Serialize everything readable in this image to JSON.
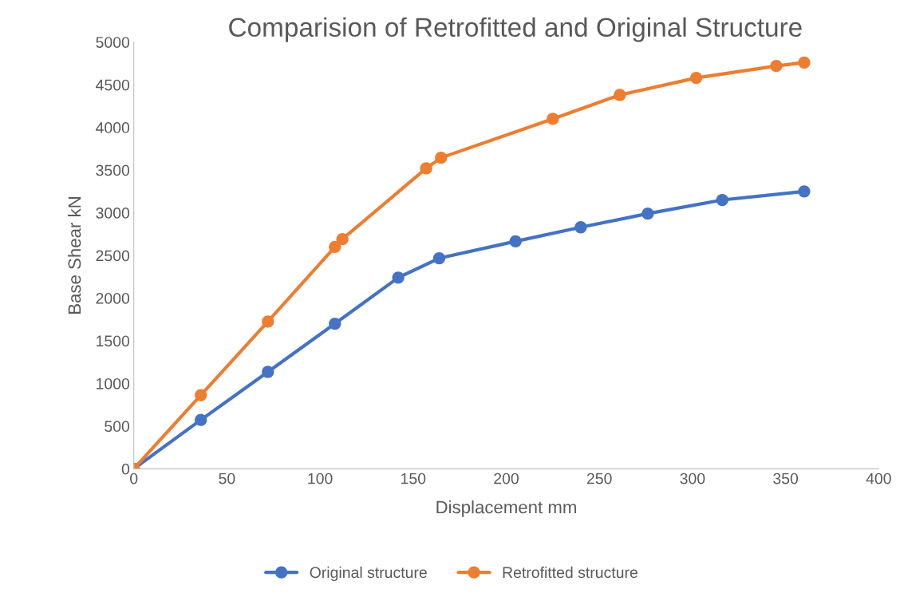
{
  "chart_data": {
    "type": "line",
    "title": "Comparision of Retrofitted and Original Structure",
    "xlabel": "Displacement mm",
    "ylabel": "Base Shear kN",
    "xlim": [
      0,
      400
    ],
    "xticks": [
      0,
      50,
      100,
      150,
      200,
      250,
      300,
      350,
      400
    ],
    "ylim": [
      0,
      5000
    ],
    "yticks": [
      0,
      500,
      1000,
      1500,
      2000,
      2500,
      3000,
      3500,
      4000,
      4500,
      5000
    ],
    "grid": false,
    "legend": "bottom",
    "marker": "circle",
    "line_style": "solid",
    "series": [
      {
        "name": "Original structure",
        "color": "#4472c4",
        "x": [
          0,
          36,
          72,
          108,
          142,
          164,
          205,
          240,
          276,
          316,
          360
        ],
        "values": [
          0,
          572,
          1135,
          1700,
          2240,
          2467,
          2665,
          2830,
          2990,
          3150,
          3250
        ]
      },
      {
        "name": "Retrofitted structure",
        "color": "#ed7d31",
        "x": [
          0,
          36,
          72,
          108,
          112,
          157,
          165,
          225,
          261,
          302,
          345,
          360
        ],
        "values": [
          0,
          863,
          1725,
          2600,
          2690,
          3520,
          3645,
          4100,
          4380,
          4580,
          4720,
          4760
        ]
      }
    ]
  }
}
